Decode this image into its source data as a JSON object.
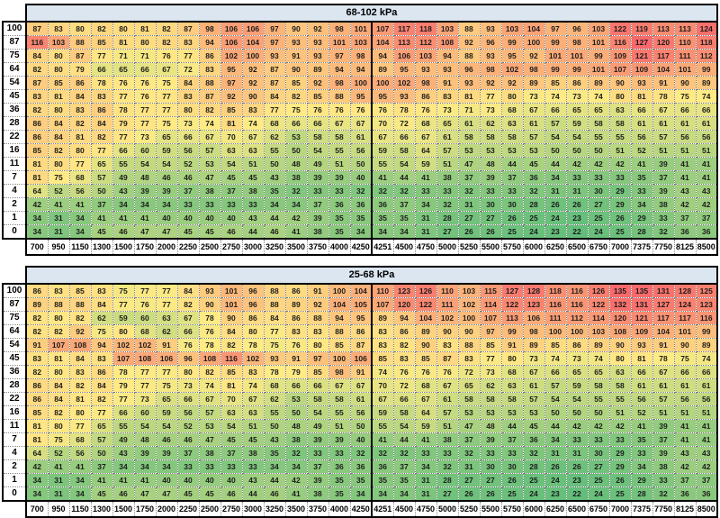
{
  "styles": {
    "title_bg": "#DCE6F1",
    "border_color": "#000000",
    "scale_low": "#63BE7B",
    "scale_mid": "#FFEB84",
    "scale_high": "#F8696B"
  },
  "chart_data": [
    {
      "type": "heatmap",
      "title": "68-102 kPa",
      "legend_position": "none",
      "grid": true,
      "divider_col_index": 16,
      "value_range": [
        22,
        127
      ],
      "row_labels": [
        "100",
        "87",
        "75",
        "64",
        "54",
        "45",
        "36",
        "28",
        "22",
        "16",
        "11",
        "7",
        "4",
        "2",
        "1",
        "0"
      ],
      "col_labels": [
        "700",
        "950",
        "1150",
        "1300",
        "1500",
        "1750",
        "2000",
        "2250",
        "2500",
        "2750",
        "3000",
        "3250",
        "3500",
        "3750",
        "4000",
        "4250",
        "4251",
        "4500",
        "4750",
        "5000",
        "5250",
        "5500",
        "5750",
        "6000",
        "6250",
        "6500",
        "6750",
        "7000",
        "7375",
        "7750",
        "8125",
        "8500"
      ],
      "values": [
        [
          87,
          83,
          80,
          82,
          80,
          81,
          82,
          87,
          98,
          106,
          106,
          97,
          90,
          92,
          98,
          101,
          107,
          117,
          118,
          103,
          88,
          93,
          103,
          104,
          97,
          96,
          103,
          122,
          119,
          113,
          113,
          124
        ],
        [
          116,
          103,
          88,
          85,
          81,
          80,
          82,
          83,
          94,
          106,
          104,
          97,
          93,
          93,
          101,
          103,
          104,
          113,
          112,
          108,
          92,
          96,
          99,
          100,
          99,
          98,
          101,
          116,
          127,
          120,
          110,
          118
        ],
        [
          84,
          80,
          87,
          77,
          71,
          71,
          76,
          77,
          86,
          102,
          100,
          93,
          91,
          93,
          97,
          98,
          94,
          106,
          103,
          94,
          88,
          93,
          95,
          92,
          101,
          101,
          99,
          109,
          121,
          117,
          111,
          112
        ],
        [
          82,
          80,
          79,
          66,
          65,
          66,
          67,
          72,
          83,
          95,
          92,
          87,
          90,
          89,
          94,
          94,
          89,
          95,
          93,
          93,
          96,
          98,
          102,
          98,
          99,
          99,
          101,
          107,
          109,
          104,
          101,
          99
        ],
        [
          87,
          85,
          86,
          78,
          76,
          76,
          75,
          84,
          88,
          97,
          92,
          87,
          85,
          92,
          98,
          100,
          100,
          102,
          98,
          91,
          93,
          92,
          92,
          89,
          85,
          86,
          89,
          90,
          93,
          91,
          90,
          89
        ],
        [
          83,
          81,
          84,
          83,
          77,
          76,
          77,
          83,
          87,
          92,
          90,
          84,
          82,
          85,
          88,
          95,
          95,
          93,
          86,
          83,
          81,
          77,
          80,
          73,
          74,
          73,
          74,
          80,
          81,
          78,
          75,
          74
        ],
        [
          82,
          80,
          83,
          86,
          78,
          77,
          77,
          80,
          82,
          85,
          83,
          77,
          75,
          76,
          76,
          76,
          76,
          78,
          76,
          73,
          71,
          73,
          68,
          67,
          66,
          65,
          65,
          63,
          66,
          67,
          66,
          66
        ],
        [
          86,
          84,
          82,
          84,
          79,
          77,
          75,
          73,
          74,
          81,
          74,
          68,
          66,
          66,
          67,
          67,
          70,
          72,
          68,
          65,
          61,
          62,
          63,
          61,
          57,
          59,
          58,
          58,
          61,
          61,
          61,
          61
        ],
        [
          86,
          84,
          81,
          82,
          77,
          73,
          65,
          66,
          67,
          70,
          67,
          62,
          53,
          58,
          58,
          61,
          67,
          66,
          67,
          61,
          58,
          58,
          58,
          57,
          54,
          54,
          55,
          55,
          56,
          57,
          56,
          56
        ],
        [
          85,
          82,
          80,
          77,
          66,
          60,
          59,
          56,
          57,
          63,
          63,
          55,
          50,
          54,
          55,
          56,
          59,
          58,
          64,
          57,
          53,
          53,
          53,
          53,
          50,
          50,
          50,
          51,
          52,
          51,
          51,
          51
        ],
        [
          81,
          80,
          77,
          65,
          55,
          54,
          54,
          52,
          53,
          54,
          51,
          50,
          48,
          49,
          51,
          50,
          55,
          54,
          59,
          51,
          47,
          48,
          44,
          45,
          44,
          42,
          42,
          42,
          41,
          39,
          41,
          41
        ],
        [
          81,
          75,
          68,
          57,
          49,
          48,
          46,
          46,
          47,
          45,
          45,
          43,
          38,
          39,
          39,
          40,
          41,
          44,
          41,
          38,
          37,
          39,
          37,
          36,
          34,
          33,
          33,
          33,
          35,
          37,
          41,
          41
        ],
        [
          64,
          52,
          56,
          50,
          43,
          39,
          39,
          37,
          38,
          37,
          38,
          35,
          32,
          33,
          33,
          32,
          32,
          32,
          33,
          33,
          32,
          33,
          33,
          32,
          31,
          31,
          30,
          29,
          33,
          39,
          43,
          43
        ],
        [
          42,
          41,
          41,
          37,
          34,
          34,
          34,
          33,
          33,
          33,
          33,
          34,
          34,
          37,
          36,
          36,
          36,
          37,
          34,
          32,
          31,
          30,
          30,
          28,
          26,
          26,
          27,
          29,
          34,
          38,
          42,
          42
        ],
        [
          34,
          31,
          34,
          41,
          41,
          41,
          40,
          40,
          40,
          40,
          43,
          44,
          42,
          39,
          35,
          35,
          35,
          35,
          31,
          28,
          27,
          27,
          26,
          25,
          24,
          23,
          25,
          26,
          29,
          33,
          37,
          37
        ],
        [
          34,
          31,
          34,
          45,
          46,
          47,
          47,
          45,
          45,
          46,
          44,
          46,
          41,
          38,
          35,
          34,
          34,
          34,
          31,
          27,
          26,
          26,
          25,
          24,
          23,
          22,
          24,
          25,
          28,
          32,
          36,
          36
        ]
      ]
    },
    {
      "type": "heatmap",
      "title": "25-68 kPa",
      "legend_position": "none",
      "grid": true,
      "divider_col_index": 16,
      "value_range": [
        22,
        135
      ],
      "row_labels": [
        "100",
        "87",
        "75",
        "64",
        "54",
        "45",
        "36",
        "28",
        "22",
        "16",
        "11",
        "7",
        "4",
        "2",
        "1",
        "0"
      ],
      "col_labels": [
        "700",
        "950",
        "1150",
        "1300",
        "1500",
        "1750",
        "2000",
        "2250",
        "2500",
        "2750",
        "3000",
        "3250",
        "3500",
        "3750",
        "4000",
        "4250",
        "4251",
        "4500",
        "4750",
        "5000",
        "5250",
        "5500",
        "5750",
        "6000",
        "6250",
        "6500",
        "6750",
        "7000",
        "7375",
        "7750",
        "8125",
        "8500"
      ],
      "values": [
        [
          86,
          83,
          85,
          83,
          75,
          77,
          77,
          84,
          93,
          101,
          96,
          88,
          86,
          91,
          100,
          104,
          110,
          123,
          126,
          110,
          103,
          115,
          127,
          128,
          118,
          116,
          126,
          135,
          135,
          131,
          128,
          125
        ],
        [
          89,
          88,
          88,
          84,
          77,
          76,
          77,
          82,
          90,
          101,
          96,
          88,
          89,
          92,
          104,
          105,
          107,
          120,
          122,
          111,
          102,
          114,
          122,
          123,
          116,
          116,
          122,
          132,
          131,
          127,
          124,
          123
        ],
        [
          82,
          80,
          82,
          62,
          59,
          60,
          63,
          67,
          78,
          90,
          86,
          84,
          86,
          88,
          94,
          95,
          89,
          94,
          104,
          102,
          100,
          107,
          113,
          106,
          111,
          112,
          114,
          120,
          121,
          117,
          117,
          116
        ],
        [
          82,
          82,
          92,
          75,
          80,
          68,
          62,
          66,
          76,
          84,
          80,
          77,
          83,
          83,
          88,
          86,
          83,
          86,
          89,
          90,
          90,
          97,
          99,
          98,
          100,
          100,
          103,
          108,
          109,
          104,
          101,
          99
        ],
        [
          91,
          107,
          108,
          94,
          102,
          102,
          91,
          76,
          78,
          82,
          78,
          75,
          76,
          80,
          85,
          87,
          83,
          82,
          90,
          83,
          88,
          85,
          91,
          89,
          85,
          86,
          89,
          90,
          93,
          91,
          90,
          89
        ],
        [
          83,
          81,
          84,
          83,
          107,
          108,
          106,
          96,
          108,
          116,
          102,
          93,
          91,
          97,
          100,
          106,
          85,
          83,
          85,
          87,
          83,
          77,
          80,
          73,
          74,
          73,
          74,
          80,
          81,
          78,
          75,
          74
        ],
        [
          82,
          80,
          83,
          86,
          78,
          77,
          77,
          80,
          82,
          85,
          83,
          78,
          79,
          85,
          98,
          91,
          74,
          76,
          76,
          76,
          72,
          73,
          68,
          67,
          66,
          65,
          65,
          63,
          66,
          67,
          66,
          66
        ],
        [
          86,
          84,
          82,
          84,
          79,
          77,
          75,
          73,
          74,
          81,
          74,
          68,
          66,
          66,
          67,
          67,
          70,
          72,
          68,
          67,
          65,
          62,
          63,
          61,
          57,
          59,
          58,
          58,
          61,
          61,
          61,
          61
        ],
        [
          86,
          84,
          81,
          82,
          77,
          73,
          65,
          66,
          67,
          70,
          67,
          62,
          53,
          58,
          58,
          61,
          67,
          66,
          67,
          61,
          58,
          58,
          58,
          57,
          54,
          54,
          55,
          55,
          56,
          57,
          56,
          56
        ],
        [
          85,
          82,
          80,
          77,
          66,
          60,
          59,
          56,
          57,
          63,
          63,
          55,
          50,
          54,
          55,
          56,
          59,
          58,
          64,
          57,
          53,
          53,
          53,
          53,
          50,
          50,
          50,
          51,
          52,
          51,
          51,
          51
        ],
        [
          81,
          80,
          77,
          65,
          55,
          54,
          54,
          52,
          53,
          54,
          51,
          50,
          48,
          49,
          51,
          50,
          55,
          54,
          59,
          51,
          47,
          48,
          44,
          45,
          44,
          42,
          42,
          42,
          41,
          39,
          41,
          41
        ],
        [
          81,
          75,
          68,
          57,
          49,
          48,
          46,
          46,
          47,
          45,
          45,
          43,
          38,
          39,
          39,
          40,
          41,
          44,
          41,
          38,
          37,
          39,
          37,
          36,
          34,
          33,
          33,
          33,
          35,
          37,
          41,
          41
        ],
        [
          64,
          52,
          56,
          50,
          43,
          39,
          39,
          37,
          38,
          37,
          38,
          35,
          32,
          33,
          33,
          32,
          32,
          32,
          33,
          33,
          32,
          33,
          33,
          32,
          31,
          31,
          30,
          29,
          33,
          39,
          43,
          43
        ],
        [
          42,
          41,
          41,
          37,
          34,
          34,
          34,
          33,
          33,
          33,
          33,
          34,
          34,
          37,
          36,
          36,
          36,
          37,
          34,
          32,
          31,
          30,
          30,
          28,
          26,
          26,
          27,
          29,
          34,
          38,
          42,
          42
        ],
        [
          34,
          31,
          34,
          41,
          41,
          41,
          40,
          40,
          40,
          40,
          43,
          44,
          42,
          39,
          35,
          35,
          35,
          35,
          31,
          28,
          27,
          27,
          26,
          25,
          24,
          23,
          25,
          26,
          29,
          33,
          37,
          37
        ],
        [
          34,
          31,
          34,
          45,
          46,
          47,
          47,
          45,
          45,
          46,
          44,
          46,
          41,
          38,
          35,
          34,
          34,
          34,
          31,
          27,
          26,
          26,
          25,
          24,
          23,
          22,
          24,
          25,
          28,
          32,
          36,
          36
        ]
      ]
    }
  ]
}
